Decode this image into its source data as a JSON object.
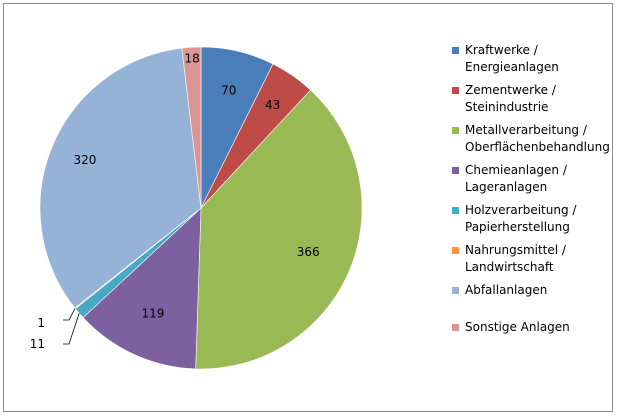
{
  "chart_data": {
    "type": "pie",
    "categories": [
      "Kraftwerke / Energieanlagen",
      "Zementwerke / Steinindustrie",
      "Metallverarbeitung / Oberflächenbehandlung",
      "Chemieanlagen / Lageranlagen",
      "Holzverarbeitung / Papierherstellung",
      "Nahrungsmittel / Landwirtschaft",
      "Abfallanlagen",
      "Sonstige Anlagen"
    ],
    "legend_lines": [
      [
        "Kraftwerke /",
        "Energieanlagen"
      ],
      [
        "Zementwerke /",
        "Steinindustrie"
      ],
      [
        "Metallverarbeitung /",
        "Oberflächenbehandlung"
      ],
      [
        "Chemieanlagen /",
        "Lageranlagen"
      ],
      [
        "Holzverarbeitung /",
        "Papierherstellung"
      ],
      [
        "Nahrungsmittel /",
        "Landwirtschaft"
      ],
      [
        "Abfallanlagen"
      ],
      [
        "Sonstige Anlagen"
      ]
    ],
    "values": [
      70,
      43,
      366,
      119,
      11,
      1,
      320,
      18
    ],
    "colors": [
      "#4a7ebb",
      "#be4b48",
      "#98b954",
      "#7d60a0",
      "#46aac5",
      "#f79646",
      "#95b3d7",
      "#d99694"
    ],
    "legend_position": "right"
  }
}
